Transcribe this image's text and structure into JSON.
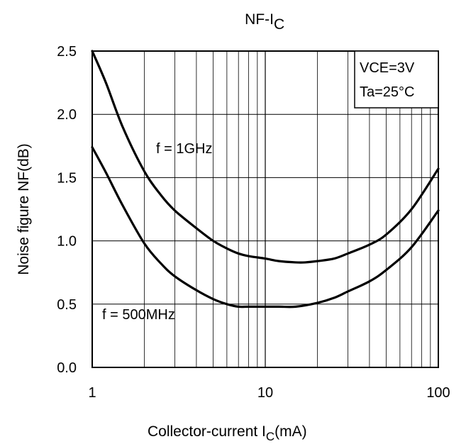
{
  "chart_data": {
    "type": "line",
    "title": "NF-I",
    "title_subscript": "C",
    "xlabel": "Collector-current I",
    "xlabel_subscript": "C",
    "xlabel_suffix": "(mA)",
    "ylabel": "Noise figure NF(dB)",
    "xscale": "log",
    "xlim": [
      1,
      100
    ],
    "ylim": [
      0.0,
      2.5
    ],
    "x_ticks": [
      "1",
      "10",
      "100"
    ],
    "y_ticks": [
      "0.0",
      "0.5",
      "1.0",
      "1.5",
      "2.0",
      "2.5"
    ],
    "grid": true,
    "conditions": [
      "VCE=3V",
      "Ta=25°C"
    ],
    "conditions_placement": "top-right",
    "series": [
      {
        "name": "f = 1GHz",
        "x": [
          1,
          1.2,
          1.5,
          2,
          2.5,
          3,
          4,
          5,
          6,
          7,
          8,
          10,
          12,
          15,
          17,
          20,
          25,
          30,
          40,
          50,
          70,
          100
        ],
        "y": [
          2.5,
          2.25,
          1.9,
          1.55,
          1.36,
          1.24,
          1.1,
          1.0,
          0.94,
          0.9,
          0.88,
          0.86,
          0.84,
          0.83,
          0.83,
          0.84,
          0.86,
          0.9,
          0.97,
          1.05,
          1.25,
          1.57
        ]
      },
      {
        "name": "f = 500MHz",
        "x": [
          1,
          1.2,
          1.5,
          2,
          2.5,
          3,
          4,
          5,
          6,
          7,
          8,
          10,
          12,
          15,
          20,
          25,
          30,
          40,
          50,
          70,
          100
        ],
        "y": [
          1.74,
          1.54,
          1.28,
          0.98,
          0.82,
          0.72,
          0.61,
          0.54,
          0.5,
          0.48,
          0.48,
          0.48,
          0.48,
          0.48,
          0.51,
          0.55,
          0.6,
          0.68,
          0.77,
          0.95,
          1.24
        ]
      }
    ]
  }
}
